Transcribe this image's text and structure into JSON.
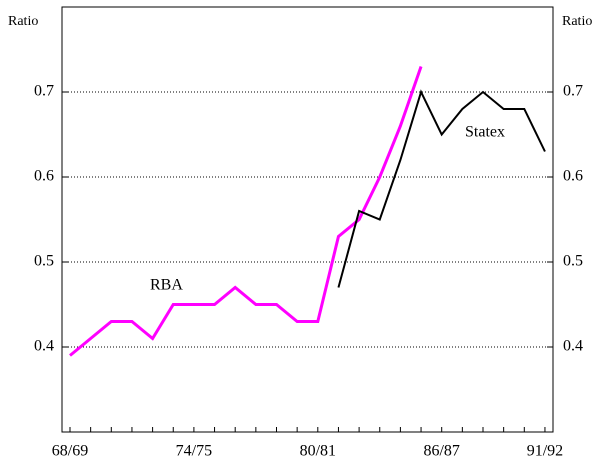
{
  "chart_data": {
    "type": "line",
    "y_label": "Ratio",
    "y2_label": "Ratio",
    "categories": [
      "68/69",
      null,
      null,
      null,
      null,
      null,
      "74/75",
      null,
      null,
      null,
      null,
      null,
      "80/81",
      null,
      null,
      null,
      null,
      null,
      "86/87",
      null,
      null,
      null,
      null,
      "91/92"
    ],
    "series": [
      {
        "name": "RBA",
        "color": "#ff00ff",
        "values": [
          0.39,
          0.41,
          0.43,
          0.43,
          0.41,
          0.45,
          0.45,
          0.45,
          0.47,
          0.45,
          0.45,
          0.43,
          0.43,
          0.53,
          0.55,
          0.6,
          0.66,
          0.73,
          null,
          null,
          null,
          null,
          null,
          null
        ]
      },
      {
        "name": "Statex",
        "color": "#000000",
        "values": [
          null,
          null,
          null,
          null,
          null,
          null,
          null,
          null,
          null,
          null,
          null,
          null,
          null,
          0.47,
          0.56,
          0.55,
          0.62,
          0.7,
          0.65,
          0.68,
          0.7,
          0.68,
          0.68,
          0.63
        ]
      }
    ],
    "ylim": [
      0.3,
      0.8
    ],
    "yticks": [
      0.4,
      0.5,
      0.6,
      0.7
    ],
    "y2lim": [
      0.3,
      0.8
    ],
    "y2ticks": [
      0.4,
      0.5,
      0.6,
      0.7
    ],
    "grid": true
  }
}
